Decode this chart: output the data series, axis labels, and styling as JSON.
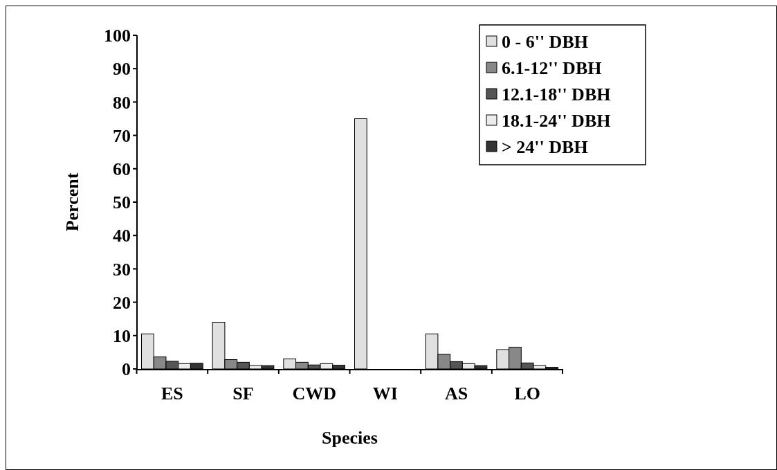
{
  "chart_data": {
    "type": "bar",
    "xlabel": "Species",
    "ylabel": "Percent",
    "categories": [
      "ES",
      "SF",
      "CWD",
      "WI",
      "AS",
      "LO"
    ],
    "series": [
      {
        "name": "0 - 6'' DBH",
        "color": "#e0e0e0",
        "values": [
          10.5,
          14,
          3,
          75,
          10.5,
          5.8
        ]
      },
      {
        "name": "6.1-12'' DBH",
        "color": "#888888",
        "values": [
          3.6,
          2.8,
          2,
          0,
          4.4,
          6.5
        ]
      },
      {
        "name": "12.1-18'' DBH",
        "color": "#555555",
        "values": [
          2.3,
          2,
          1.2,
          0,
          2.2,
          1.8
        ]
      },
      {
        "name": "18.1-24'' DBH",
        "color": "#ececec",
        "values": [
          1.6,
          1,
          1.6,
          0,
          1.6,
          1
        ]
      },
      {
        "name": "> 24'' DBH",
        "color": "#333333",
        "values": [
          1.7,
          1,
          1.1,
          0,
          1,
          0.5
        ]
      }
    ],
    "ylim": [
      0,
      100
    ],
    "yticks": [
      0,
      10,
      20,
      30,
      40,
      50,
      60,
      70,
      80,
      90,
      100
    ],
    "legend": "top right"
  }
}
